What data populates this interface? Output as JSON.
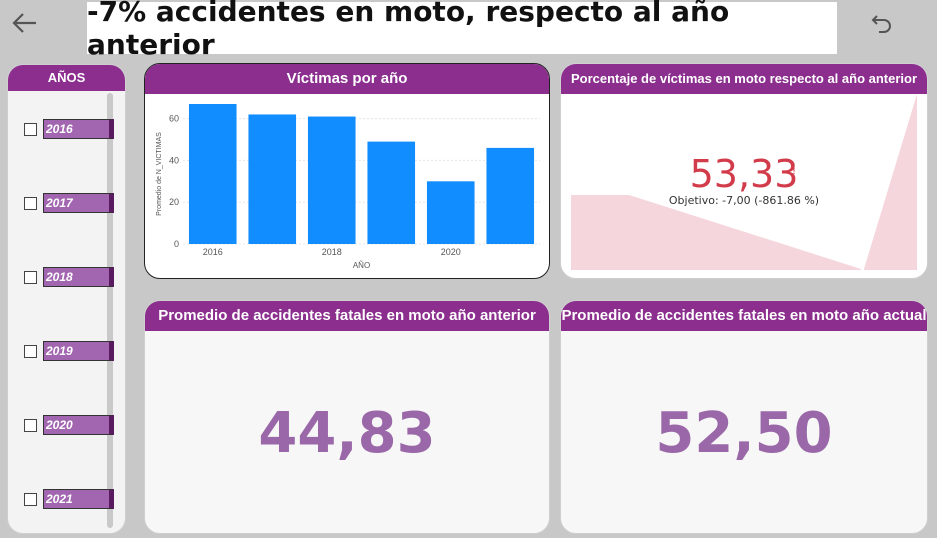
{
  "title": "-7% accidentes en moto, respecto al año anterior",
  "slicer": {
    "header": "AÑOS",
    "items": [
      "2016",
      "2017",
      "2018",
      "2019",
      "2020",
      "2021"
    ]
  },
  "bar_chart": {
    "header": "Víctimas por año",
    "chart_data": {
      "type": "bar",
      "title": "Víctimas por año",
      "xlabel": "AÑO",
      "ylabel": "Promedio de N_VICTIMAS",
      "categories": [
        "2016",
        "2017",
        "2018",
        "2019",
        "2020",
        "2021"
      ],
      "x_tick_labels": [
        "2016",
        "",
        "2018",
        "",
        "2020",
        ""
      ],
      "values": [
        67,
        62,
        61,
        49,
        30,
        46
      ],
      "ylim": [
        0,
        67
      ],
      "yticks": [
        0,
        20,
        40,
        60
      ],
      "color": "#118dff",
      "grid": true
    }
  },
  "kpi": {
    "header": "Porcentaje de víctimas en moto respecto al año anterior",
    "value": "53,33",
    "indicator": "!",
    "target": "Objetivo: -7,00 (-861.86 %)",
    "trend_color": "#f5d6dc",
    "value_color": "#d23b4a"
  },
  "prev_year": {
    "header": "Promedio de accidentes fatales en moto año anterior",
    "value": "44,83"
  },
  "curr_year": {
    "header": "Promedio de accidentes fatales en moto año actual",
    "value": "52,50"
  }
}
